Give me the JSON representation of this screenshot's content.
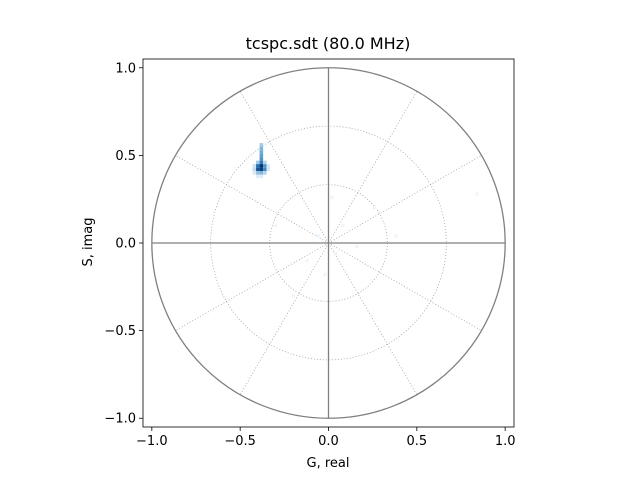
{
  "chart_data": {
    "type": "heatmap",
    "title": "tcspc.sdt (80.0 MHz)",
    "xlabel": "G, real",
    "ylabel": "S, imag",
    "xlim": [
      -1.05,
      1.05
    ],
    "ylim": [
      -1.05,
      1.05
    ],
    "xticks": [
      -1.0,
      -0.5,
      0.0,
      0.5,
      1.0
    ],
    "xtick_labels": [
      "−1.0",
      "−0.5",
      "0.0",
      "0.5",
      "1.0"
    ],
    "yticks": [
      -1.0,
      -0.5,
      0.0,
      0.5,
      1.0
    ],
    "ytick_labels": [
      "−1.0",
      "−0.5",
      "0.0",
      "0.5",
      "1.0"
    ],
    "grid": "polar",
    "unit_circle_radius": 1.0,
    "grid_circle_radii": [
      0.333,
      0.667
    ],
    "grid_spoke_angles_deg": [
      30,
      60,
      90,
      120,
      150,
      210,
      240,
      270,
      300,
      330
    ],
    "colormap": "Blues",
    "colors": {
      "unit_circle": "#808080",
      "axis_lines": "#808080",
      "grid": "#a0a0a0",
      "cmap_low": "#deebf7",
      "cmap_mid": "#6baed6",
      "cmap_high": "#08306b"
    },
    "bin_size": 0.02,
    "bins": [
      {
        "g": -0.38,
        "s": 0.56,
        "v": 0.35
      },
      {
        "g": -0.38,
        "s": 0.54,
        "v": 0.45
      },
      {
        "g": -0.38,
        "s": 0.52,
        "v": 0.5
      },
      {
        "g": -0.38,
        "s": 0.5,
        "v": 0.55
      },
      {
        "g": -0.38,
        "s": 0.48,
        "v": 0.6
      },
      {
        "g": -0.4,
        "s": 0.46,
        "v": 0.35
      },
      {
        "g": -0.38,
        "s": 0.46,
        "v": 0.7
      },
      {
        "g": -0.36,
        "s": 0.46,
        "v": 0.3
      },
      {
        "g": -0.42,
        "s": 0.44,
        "v": 0.2
      },
      {
        "g": -0.4,
        "s": 0.44,
        "v": 0.75
      },
      {
        "g": -0.38,
        "s": 0.44,
        "v": 1.0
      },
      {
        "g": -0.36,
        "s": 0.44,
        "v": 0.6
      },
      {
        "g": -0.34,
        "s": 0.44,
        "v": 0.15
      },
      {
        "g": -0.42,
        "s": 0.42,
        "v": 0.25
      },
      {
        "g": -0.4,
        "s": 0.42,
        "v": 0.85
      },
      {
        "g": -0.38,
        "s": 0.42,
        "v": 0.95
      },
      {
        "g": -0.36,
        "s": 0.42,
        "v": 0.65
      },
      {
        "g": -0.34,
        "s": 0.42,
        "v": 0.15
      },
      {
        "g": -0.42,
        "s": 0.4,
        "v": 0.15
      },
      {
        "g": -0.4,
        "s": 0.4,
        "v": 0.4
      },
      {
        "g": -0.38,
        "s": 0.4,
        "v": 0.45
      },
      {
        "g": -0.36,
        "s": 0.4,
        "v": 0.3
      },
      {
        "g": -0.4,
        "s": 0.38,
        "v": 0.12
      },
      {
        "g": -0.38,
        "s": 0.38,
        "v": 0.12
      },
      {
        "g": -0.06,
        "s": 0.04,
        "v": 0.05
      },
      {
        "g": 0.04,
        "s": -0.06,
        "v": 0.05
      },
      {
        "g": -0.12,
        "s": -0.1,
        "v": 0.04
      },
      {
        "g": 0.08,
        "s": 0.1,
        "v": 0.04
      },
      {
        "g": -0.02,
        "s": -0.18,
        "v": 0.04
      },
      {
        "g": 0.16,
        "s": -0.02,
        "v": 0.04
      },
      {
        "g": -0.3,
        "s": 0.1,
        "v": 0.04
      },
      {
        "g": 0.02,
        "s": 0.26,
        "v": 0.04
      },
      {
        "g": -0.2,
        "s": -0.3,
        "v": 0.03
      },
      {
        "g": 0.26,
        "s": 0.2,
        "v": 0.03
      },
      {
        "g": 0.38,
        "s": 0.04,
        "v": 0.03
      },
      {
        "g": 0.84,
        "s": 0.28,
        "v": 0.03
      }
    ]
  }
}
